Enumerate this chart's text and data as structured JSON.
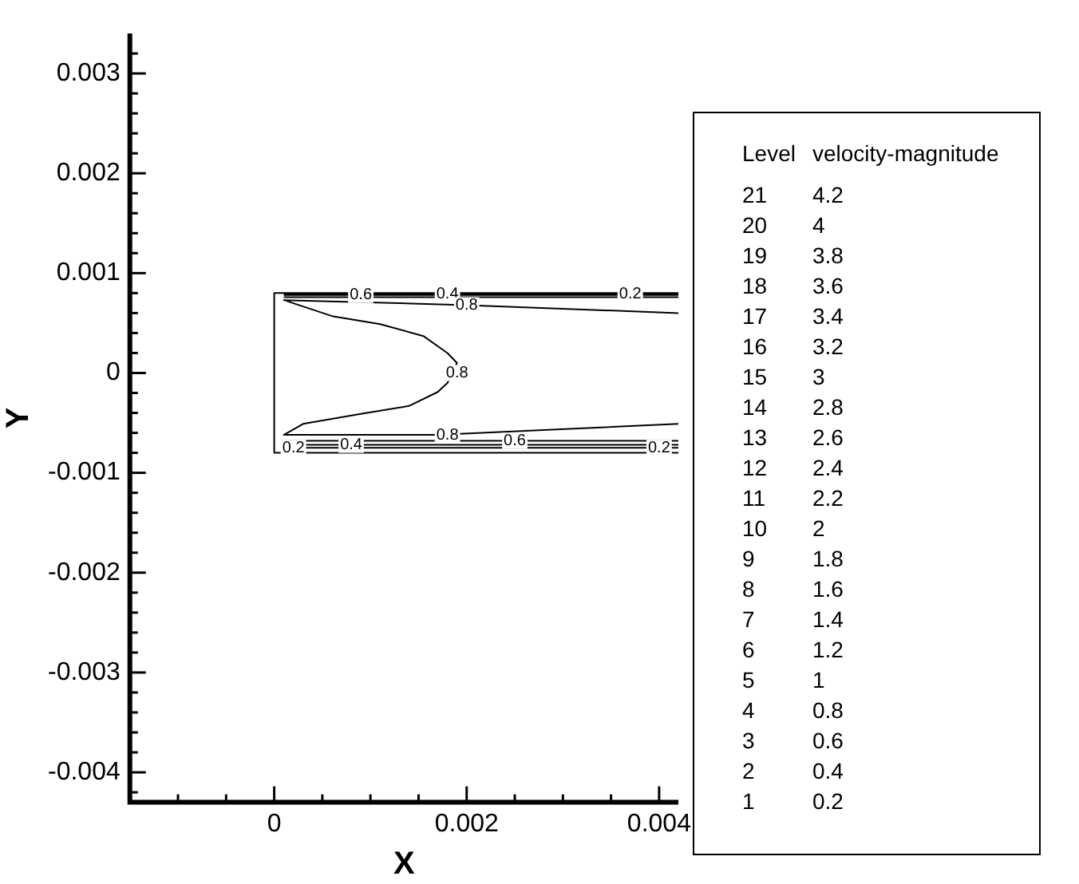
{
  "chart_data": {
    "type": "line",
    "xlabel": "X",
    "ylabel": "Y",
    "marker": "none",
    "line_style": "solid",
    "grid": false,
    "legend": false,
    "xlim": [
      -0.0015,
      0.0042
    ],
    "ylim": [
      -0.0043,
      0.0034
    ],
    "xticks": [
      {
        "value": -0.001,
        "label": null
      },
      {
        "value": -0.0005,
        "label": null
      },
      0,
      {
        "value": 0.0005,
        "label": null
      },
      {
        "value": 0.001,
        "label": null
      },
      {
        "value": 0.0015,
        "label": null
      },
      0.002,
      {
        "value": 0.0025,
        "label": null
      },
      {
        "value": 0.003,
        "label": null
      },
      {
        "value": 0.0035,
        "label": null
      },
      0.004
    ],
    "yticks": [
      {
        "value": -0.0042,
        "label": null
      },
      -0.004,
      {
        "value": -0.0038,
        "label": null
      },
      {
        "value": -0.0036,
        "label": null
      },
      {
        "value": -0.0034,
        "label": null
      },
      {
        "value": -0.0032,
        "label": null
      },
      -0.003,
      {
        "value": -0.0028,
        "label": null
      },
      {
        "value": -0.0026,
        "label": null
      },
      {
        "value": -0.0024,
        "label": null
      },
      {
        "value": -0.0022,
        "label": null
      },
      -0.002,
      {
        "value": -0.0018,
        "label": null
      },
      {
        "value": -0.0016,
        "label": null
      },
      {
        "value": -0.0014,
        "label": null
      },
      {
        "value": -0.0012,
        "label": null
      },
      -0.001,
      {
        "value": -0.0008,
        "label": null
      },
      {
        "value": -0.0006,
        "label": null
      },
      {
        "value": -0.0004,
        "label": null
      },
      {
        "value": -0.0002,
        "label": null
      },
      0,
      {
        "value": 0.0002,
        "label": null
      },
      {
        "value": 0.0004,
        "label": null
      },
      {
        "value": 0.0006,
        "label": null
      },
      {
        "value": 0.0008,
        "label": null
      },
      0.001,
      {
        "value": 0.0012,
        "label": null
      },
      {
        "value": 0.0014,
        "label": null
      },
      {
        "value": 0.0016,
        "label": null
      },
      {
        "value": 0.0018,
        "label": null
      },
      0.002,
      {
        "value": 0.0022,
        "label": null
      },
      {
        "value": 0.0024,
        "label": null
      },
      {
        "value": 0.0026,
        "label": null
      },
      {
        "value": 0.0028,
        "label": null
      },
      0.003,
      {
        "value": 0.0032,
        "label": null
      }
    ],
    "series": [
      {
        "color": "#000000",
        "x": [
          0.0042,
          0.0,
          0.0,
          0.0042
        ],
        "values": [
          0.0008,
          0.0008,
          -0.0008,
          -0.0008
        ]
      },
      {
        "color": "#000000",
        "x": [
          0.0001,
          0.0042
        ],
        "values": [
          0.00079,
          0.00079
        ]
      },
      {
        "color": "#000000",
        "x": [
          0.0001,
          0.0042
        ],
        "values": [
          0.00078,
          0.00078
        ]
      },
      {
        "color": "#000000",
        "x": [
          0.0001,
          0.0042
        ],
        "values": [
          0.00076,
          0.00076
        ]
      },
      {
        "color": "#000000",
        "x": [
          0.0042,
          0.002,
          0.0001,
          0.0006,
          0.0011,
          0.00155,
          0.0018,
          0.0019,
          0.0018,
          0.0017,
          0.0014,
          0.0009,
          0.0003,
          0.0001,
          0.0017,
          0.0042
        ],
        "values": [
          0.0006,
          0.00068,
          0.00073,
          0.00057,
          0.00049,
          0.00037,
          0.0002,
          0.0001,
          -0.0001,
          -0.00019,
          -0.00033,
          -0.00041,
          -0.00051,
          -0.00062,
          -0.00062,
          -0.00051
        ]
      },
      {
        "color": "#000000",
        "x": [
          0.0001,
          0.0042
        ],
        "values": [
          -0.00068,
          -0.00068
        ]
      },
      {
        "color": "#000000",
        "x": [
          0.0001,
          0.0042
        ],
        "values": [
          -0.00072,
          -0.00072
        ]
      },
      {
        "color": "#000000",
        "x": [
          0.0001,
          0.0042
        ],
        "values": [
          -0.00075,
          -0.00075
        ]
      }
    ],
    "annotations": [
      {
        "text": "0.6",
        "x": 0.0009,
        "y": 0.00078
      },
      {
        "text": "0.4",
        "x": 0.0018,
        "y": 0.00079
      },
      {
        "text": "0.2",
        "x": 0.0037,
        "y": 0.00079
      },
      {
        "text": "0.8",
        "x": 0.002,
        "y": 0.00068
      },
      {
        "text": "0.8",
        "x": 0.0019,
        "y": 0.0
      },
      {
        "text": "0.2",
        "x": 0.0002,
        "y": -0.00075
      },
      {
        "text": "0.4",
        "x": 0.0008,
        "y": -0.00072
      },
      {
        "text": "0.8",
        "x": 0.0018,
        "y": -0.00062
      },
      {
        "text": "0.6",
        "x": 0.0025,
        "y": -0.00068
      },
      {
        "text": "0.2",
        "x": 0.004,
        "y": -0.00075
      },
      "Level velocity-magnitude",
      "21 4.2",
      "20 4",
      "19 3.8",
      "18 3.6",
      "17 3.4",
      "16 3.2",
      "15 3",
      "14 2.8",
      "13 2.6",
      "12 2.4",
      "11 2.2",
      "10 2",
      "9 1.8",
      "8 1.6",
      "7 1.4",
      "6 1.2",
      "5 1",
      "4 0.8",
      "3 0.6",
      "2 0.4",
      "1 0.2"
    ]
  }
}
